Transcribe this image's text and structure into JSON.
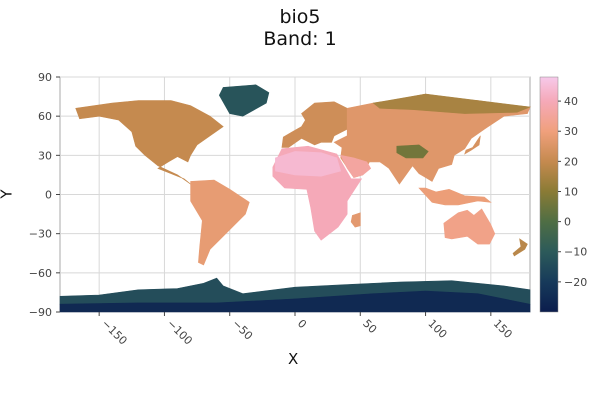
{
  "title": "bio5",
  "subtitle": "Band: 1",
  "chart_data": {
    "type": "heatmap",
    "xlabel": "X",
    "ylabel": "Y",
    "xlim": [
      -180,
      180
    ],
    "ylim": [
      -90,
      90
    ],
    "xticks": [
      -150,
      -100,
      -50,
      0,
      50,
      100,
      150
    ],
    "yticks": [
      90,
      60,
      30,
      0,
      -30,
      -60,
      -90
    ],
    "grid": true,
    "colorbar": {
      "range": [
        -30,
        48
      ],
      "ticks": [
        -20,
        -10,
        0,
        10,
        20,
        30,
        40
      ],
      "stops": [
        {
          "v": -30,
          "c": "#0b1d4d"
        },
        {
          "v": -20,
          "c": "#173a5a"
        },
        {
          "v": -10,
          "c": "#2c5a5a"
        },
        {
          "v": 0,
          "c": "#4f6e44"
        },
        {
          "v": 10,
          "c": "#8a7b35"
        },
        {
          "v": 20,
          "c": "#c58a4f"
        },
        {
          "v": 30,
          "c": "#f0a07c"
        },
        {
          "v": 40,
          "c": "#f5a9b8"
        },
        {
          "v": 48,
          "c": "#f6c9ea"
        }
      ]
    },
    "regions": [
      {
        "name": "north-america",
        "value": 20,
        "lonlat": [
          [
            -168,
            66
          ],
          [
            -140,
            70
          ],
          [
            -120,
            72
          ],
          [
            -95,
            72
          ],
          [
            -80,
            68
          ],
          [
            -65,
            60
          ],
          [
            -55,
            52
          ],
          [
            -65,
            45
          ],
          [
            -75,
            38
          ],
          [
            -80,
            30
          ],
          [
            -82,
            25
          ],
          [
            -90,
            29
          ],
          [
            -97,
            25
          ],
          [
            -105,
            20
          ],
          [
            -95,
            16
          ],
          [
            -85,
            12
          ],
          [
            -80,
            8
          ],
          [
            -90,
            15
          ],
          [
            -105,
            22
          ],
          [
            -115,
            30
          ],
          [
            -122,
            37
          ],
          [
            -125,
            48
          ],
          [
            -135,
            57
          ],
          [
            -150,
            60
          ],
          [
            -165,
            58
          ]
        ]
      },
      {
        "name": "greenland",
        "value": -12,
        "lonlat": [
          [
            -55,
            82
          ],
          [
            -30,
            84
          ],
          [
            -20,
            78
          ],
          [
            -22,
            70
          ],
          [
            -40,
            60
          ],
          [
            -50,
            62
          ],
          [
            -58,
            76
          ]
        ]
      },
      {
        "name": "south-america",
        "value": 28,
        "lonlat": [
          [
            -80,
            10
          ],
          [
            -62,
            11
          ],
          [
            -50,
            4
          ],
          [
            -35,
            -6
          ],
          [
            -38,
            -15
          ],
          [
            -48,
            -25
          ],
          [
            -58,
            -35
          ],
          [
            -65,
            -42
          ],
          [
            -70,
            -54
          ],
          [
            -74,
            -52
          ],
          [
            -73,
            -40
          ],
          [
            -71,
            -20
          ],
          [
            -80,
            -5
          ]
        ]
      },
      {
        "name": "africa",
        "value": 40,
        "lonlat": [
          [
            -17,
            21
          ],
          [
            -10,
            35
          ],
          [
            10,
            37
          ],
          [
            32,
            31
          ],
          [
            43,
            12
          ],
          [
            51,
            12
          ],
          [
            40,
            -5
          ],
          [
            40,
            -15
          ],
          [
            33,
            -25
          ],
          [
            20,
            -35
          ],
          [
            15,
            -28
          ],
          [
            12,
            -10
          ],
          [
            9,
            4
          ],
          [
            -8,
            5
          ],
          [
            -17,
            14
          ]
        ]
      },
      {
        "name": "europe",
        "value": 22,
        "lonlat": [
          [
            -10,
            36
          ],
          [
            -9,
            44
          ],
          [
            -2,
            48
          ],
          [
            5,
            52
          ],
          [
            8,
            57
          ],
          [
            5,
            62
          ],
          [
            15,
            70
          ],
          [
            30,
            71
          ],
          [
            40,
            66
          ],
          [
            40,
            50
          ],
          [
            30,
            45
          ],
          [
            28,
            40
          ],
          [
            20,
            40
          ],
          [
            15,
            38
          ],
          [
            5,
            43
          ],
          [
            -5,
            36
          ]
        ]
      },
      {
        "name": "asia",
        "value": 26,
        "lonlat": [
          [
            40,
            66
          ],
          [
            60,
            70
          ],
          [
            80,
            73
          ],
          [
            100,
            77
          ],
          [
            120,
            73
          ],
          [
            140,
            72
          ],
          [
            160,
            69
          ],
          [
            180,
            67
          ],
          [
            178,
            62
          ],
          [
            160,
            60
          ],
          [
            145,
            50
          ],
          [
            135,
            43
          ],
          [
            130,
            35
          ],
          [
            122,
            30
          ],
          [
            120,
            23
          ],
          [
            110,
            20
          ],
          [
            105,
            10
          ],
          [
            100,
            13
          ],
          [
            95,
            16
          ],
          [
            90,
            22
          ],
          [
            80,
            8
          ],
          [
            72,
            20
          ],
          [
            65,
            25
          ],
          [
            57,
            25
          ],
          [
            52,
            15
          ],
          [
            45,
            13
          ],
          [
            35,
            28
          ],
          [
            36,
            36
          ],
          [
            30,
            40
          ],
          [
            40,
            45
          ],
          [
            40,
            55
          ]
        ]
      },
      {
        "name": "arabia-india",
        "value": 36,
        "lonlat": [
          [
            35,
            30
          ],
          [
            45,
            28
          ],
          [
            55,
            25
          ],
          [
            58,
            20
          ],
          [
            52,
            15
          ],
          [
            45,
            13
          ],
          [
            40,
            20
          ]
        ]
      },
      {
        "name": "tibet",
        "value": 6,
        "lonlat": [
          [
            78,
            37
          ],
          [
            95,
            38
          ],
          [
            102,
            33
          ],
          [
            98,
            28
          ],
          [
            85,
            28
          ],
          [
            78,
            32
          ]
        ]
      },
      {
        "name": "siberia-north",
        "value": 15,
        "lonlat": [
          [
            60,
            70
          ],
          [
            100,
            77
          ],
          [
            140,
            72
          ],
          [
            180,
            67
          ],
          [
            170,
            63
          ],
          [
            130,
            62
          ],
          [
            90,
            65
          ],
          [
            65,
            66
          ]
        ]
      },
      {
        "name": "sahara",
        "value": 44,
        "lonlat": [
          [
            -15,
            28
          ],
          [
            0,
            33
          ],
          [
            20,
            32
          ],
          [
            32,
            28
          ],
          [
            35,
            18
          ],
          [
            20,
            14
          ],
          [
            0,
            15
          ],
          [
            -15,
            18
          ]
        ]
      },
      {
        "name": "australia",
        "value": 32,
        "lonlat": [
          [
            114,
            -22
          ],
          [
            125,
            -14
          ],
          [
            132,
            -12
          ],
          [
            137,
            -16
          ],
          [
            143,
            -11
          ],
          [
            150,
            -23
          ],
          [
            153,
            -30
          ],
          [
            149,
            -38
          ],
          [
            140,
            -38
          ],
          [
            132,
            -32
          ],
          [
            120,
            -34
          ],
          [
            115,
            -33
          ]
        ]
      },
      {
        "name": "new-zealand",
        "value": 18,
        "lonlat": [
          [
            172,
            -34
          ],
          [
            178,
            -38
          ],
          [
            176,
            -42
          ],
          [
            168,
            -47
          ],
          [
            167,
            -45
          ],
          [
            173,
            -40
          ]
        ]
      },
      {
        "name": "indonesia",
        "value": 29,
        "lonlat": [
          [
            95,
            5
          ],
          [
            105,
            -6
          ],
          [
            115,
            -8
          ],
          [
            125,
            -8
          ],
          [
            140,
            -5
          ],
          [
            150,
            -6
          ],
          [
            145,
            -2
          ],
          [
            130,
            -1
          ],
          [
            118,
            4
          ],
          [
            108,
            2
          ],
          [
            100,
            5
          ]
        ]
      },
      {
        "name": "japan",
        "value": 24,
        "lonlat": [
          [
            130,
            31
          ],
          [
            135,
            34
          ],
          [
            141,
            38
          ],
          [
            142,
            45
          ],
          [
            140,
            42
          ],
          [
            136,
            36
          ],
          [
            131,
            34
          ]
        ]
      },
      {
        "name": "madagascar",
        "value": 27,
        "lonlat": [
          [
            44,
            -16
          ],
          [
            50,
            -14
          ],
          [
            50,
            -24
          ],
          [
            46,
            -25
          ],
          [
            43,
            -21
          ]
        ]
      },
      {
        "name": "antarctica-coast",
        "value": -14,
        "lonlat": [
          [
            -180,
            -84
          ],
          [
            -180,
            -78
          ],
          [
            -150,
            -77
          ],
          [
            -120,
            -73
          ],
          [
            -90,
            -72
          ],
          [
            -70,
            -68
          ],
          [
            -60,
            -64
          ],
          [
            -55,
            -70
          ],
          [
            -40,
            -76
          ],
          [
            0,
            -71
          ],
          [
            40,
            -69
          ],
          [
            80,
            -67
          ],
          [
            120,
            -66
          ],
          [
            160,
            -70
          ],
          [
            180,
            -73
          ],
          [
            180,
            -84
          ]
        ]
      },
      {
        "name": "antarctica-interior",
        "value": -26,
        "lonlat": [
          [
            -180,
            -90
          ],
          [
            -180,
            -84
          ],
          [
            -120,
            -83
          ],
          [
            -60,
            -83
          ],
          [
            0,
            -80
          ],
          [
            60,
            -76
          ],
          [
            100,
            -74
          ],
          [
            140,
            -76
          ],
          [
            180,
            -84
          ],
          [
            180,
            -90
          ]
        ]
      }
    ]
  }
}
